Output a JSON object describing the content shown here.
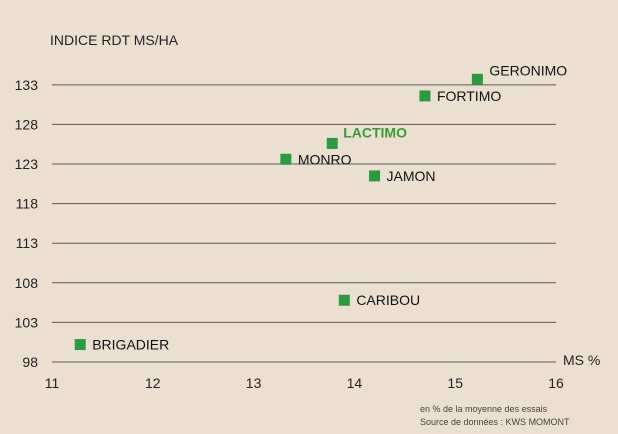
{
  "chart_data": {
    "type": "scatter",
    "ylabel": "INDICE RDT MS/HA",
    "xlabel": "MS %",
    "xlim": [
      11,
      16
    ],
    "ylim": [
      98,
      135
    ],
    "xticks": [
      11,
      12,
      13,
      14,
      15,
      16
    ],
    "yticks": [
      98,
      103,
      108,
      113,
      118,
      123,
      128,
      133
    ],
    "grid": "horizontal",
    "marker_color": "#2e9a40",
    "highlight_color": "#3a9a3a",
    "points": [
      {
        "label": "GERONIMO",
        "x": 15.22,
        "y": 133.7,
        "highlight": false
      },
      {
        "label": "FORTIMO",
        "x": 14.7,
        "y": 131.6,
        "highlight": false
      },
      {
        "label": "LACTIMO",
        "x": 13.78,
        "y": 125.6,
        "highlight": true
      },
      {
        "label": "MONRO",
        "x": 13.32,
        "y": 123.6,
        "highlight": false
      },
      {
        "label": "JAMON",
        "x": 14.2,
        "y": 121.5,
        "highlight": false
      },
      {
        "label": "CARIBOU",
        "x": 13.9,
        "y": 105.8,
        "highlight": false
      },
      {
        "label": "BRIGADIER",
        "x": 11.28,
        "y": 100.2,
        "highlight": false
      }
    ],
    "notes": [
      "en % de la moyenne des essais",
      "Source de données : KWS MOMONT"
    ]
  }
}
